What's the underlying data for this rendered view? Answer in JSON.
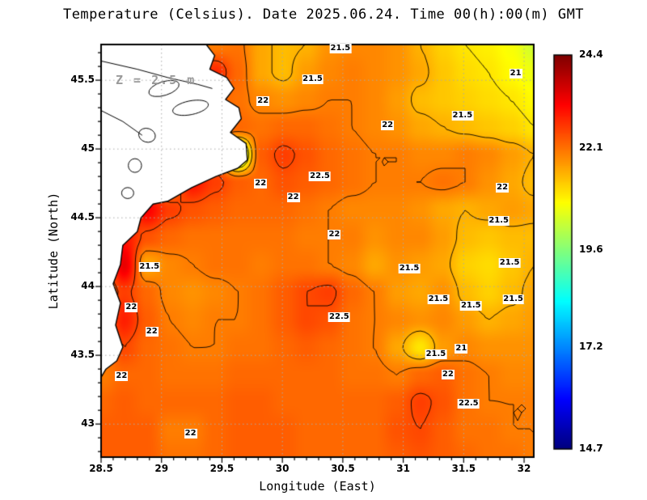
{
  "chart_data": {
    "type": "heatmap",
    "title": "Temperature (Celsius). Date 2025.06.24. Time 00(h):00(m) GMT",
    "annotation": "Z = 2.5 m",
    "xlabel": "Longitude (East)",
    "ylabel": "Latitude (North)",
    "xlim": [
      28.5,
      32.08
    ],
    "ylim": [
      42.76,
      45.76
    ],
    "x_ticks": [
      28.5,
      29,
      29.5,
      30,
      30.5,
      31,
      31.5,
      32
    ],
    "x_tick_labels": [
      "28.5",
      "29",
      "29.5",
      "30",
      "30.5",
      "31",
      "31.5",
      "32"
    ],
    "y_ticks": [
      43,
      43.5,
      44,
      44.5,
      45,
      45.5
    ],
    "y_tick_labels": [
      "43",
      "43.5",
      "44",
      "44.5",
      "45",
      "45.5"
    ],
    "colormap": "jet",
    "colorbar": {
      "position": "right",
      "min": 14.7,
      "max": 24.4,
      "tick_values": [
        24.4,
        22.1,
        19.6,
        17.2,
        14.7
      ],
      "tick_labels": [
        "24.4",
        "22.1",
        "19.6",
        "17.2",
        "14.7"
      ]
    },
    "grid": {
      "units": "degC",
      "lon_range": [
        28.5,
        32.08
      ],
      "lat_range_north_to_south": [
        45.76,
        42.76
      ],
      "nx": 20,
      "ny": 16,
      "values": [
        [
          22,
          22,
          22,
          22,
          22,
          22,
          22.1,
          21.6,
          21.4,
          21.5,
          21.8,
          21.9,
          21.9,
          21.8,
          21.5,
          21.2,
          21,
          20.9,
          20.7,
          20.3
        ],
        [
          22,
          22,
          22,
          22,
          22,
          22.8,
          22.2,
          21.6,
          21.4,
          21.7,
          21.9,
          22,
          21.9,
          21.8,
          21.6,
          21.3,
          21.1,
          21,
          20.8,
          20.6
        ],
        [
          22,
          22,
          22,
          22,
          22,
          22.3,
          22.1,
          21.9,
          21.8,
          21.9,
          22,
          22,
          21.9,
          21.7,
          21.4,
          21.3,
          21.2,
          21.1,
          21,
          20.8
        ],
        [
          22,
          22,
          22,
          22,
          22,
          22.2,
          22.2,
          22.1,
          22.2,
          22.2,
          22.1,
          22,
          21.9,
          21.8,
          21.6,
          21.5,
          21.4,
          21.3,
          21.2,
          21
        ],
        [
          22,
          22,
          22,
          22,
          22,
          22.2,
          19.8,
          22.3,
          22.6,
          22.4,
          22.2,
          22.1,
          22,
          22,
          21.9,
          21.9,
          22,
          21.9,
          21.7,
          21.5
        ],
        [
          22,
          22,
          22,
          22,
          23,
          22.6,
          22.3,
          22.2,
          22.4,
          22.3,
          22.2,
          22.1,
          22,
          22,
          22,
          22.1,
          22,
          21.8,
          21.6,
          21.4
        ],
        [
          22,
          22,
          23.2,
          22.6,
          22.4,
          22.3,
          22.2,
          22.2,
          22.2,
          22.1,
          22,
          21.9,
          21.9,
          21.9,
          21.8,
          21.6,
          21.5,
          21.6,
          21.7,
          21.6
        ],
        [
          22,
          23,
          22.4,
          22.2,
          22.1,
          22.1,
          22.1,
          22.1,
          22.1,
          22,
          22,
          22,
          21.8,
          21.9,
          21.9,
          21.7,
          21.4,
          21.3,
          21.4,
          21.4
        ],
        [
          22,
          23.4,
          21.6,
          21.9,
          22,
          22.1,
          22.1,
          22,
          22.1,
          22.1,
          22,
          21.9,
          21.6,
          21.8,
          21.7,
          21.6,
          21.2,
          21.1,
          21.3,
          21.5
        ],
        [
          22,
          22.6,
          22.2,
          21.9,
          21.8,
          21.9,
          22,
          22.1,
          22.3,
          22.5,
          22.6,
          22.2,
          22,
          21.7,
          21.6,
          21.8,
          21.4,
          21.2,
          21.4,
          21.6
        ],
        [
          22,
          22.9,
          22.3,
          22,
          21.9,
          22,
          22,
          22.1,
          22.3,
          22.5,
          22.4,
          22.1,
          22,
          21.9,
          21.8,
          21.9,
          21.7,
          21.5,
          21.6,
          21.7
        ],
        [
          22,
          22.5,
          22.2,
          22.1,
          22,
          22,
          22.1,
          22.1,
          22.2,
          22.3,
          22.2,
          22.1,
          22,
          21.6,
          21,
          21.7,
          21.9,
          21.8,
          21.8,
          21.8
        ],
        [
          22,
          22.2,
          22.2,
          22.1,
          22.1,
          22.1,
          22.2,
          22.2,
          22.2,
          22.2,
          22.2,
          22.1,
          22.1,
          22,
          22.2,
          22.3,
          22.1,
          22,
          21.9,
          21.9
        ],
        [
          22.2,
          22.3,
          22.2,
          22.2,
          22.2,
          22.2,
          22.3,
          22.3,
          22.2,
          22.2,
          22.2,
          22.2,
          22.2,
          22.3,
          22.6,
          22.4,
          22.1,
          22,
          22,
          22
        ],
        [
          22.3,
          22.3,
          22.3,
          22,
          22,
          22.2,
          22.3,
          22.3,
          22.3,
          22.2,
          22.2,
          22.2,
          22.2,
          22.4,
          22.5,
          22.3,
          22.1,
          22.1,
          22,
          22
        ],
        [
          22.3,
          22.3,
          22.3,
          22.1,
          22.1,
          22.2,
          22.3,
          22.3,
          22.3,
          22.2,
          22.2,
          22.2,
          22.2,
          22.3,
          22.4,
          22.3,
          22.2,
          22.1,
          22.1,
          22
        ]
      ]
    },
    "contour_levels": [
      21,
      21.5,
      22,
      22.5
    ],
    "contour_labels": [
      {
        "lon": 30.48,
        "lat": 45.73,
        "text": "21.5"
      },
      {
        "lon": 30.25,
        "lat": 45.51,
        "text": "21.5"
      },
      {
        "lon": 29.84,
        "lat": 45.35,
        "text": "22"
      },
      {
        "lon": 30.87,
        "lat": 45.17,
        "text": "22"
      },
      {
        "lon": 31.49,
        "lat": 45.24,
        "text": "21.5"
      },
      {
        "lon": 31.93,
        "lat": 45.55,
        "text": "21"
      },
      {
        "lon": 30.31,
        "lat": 44.8,
        "text": "22.5"
      },
      {
        "lon": 29.82,
        "lat": 44.75,
        "text": "22"
      },
      {
        "lon": 30.09,
        "lat": 44.65,
        "text": "22"
      },
      {
        "lon": 31.82,
        "lat": 44.72,
        "text": "22"
      },
      {
        "lon": 30.43,
        "lat": 44.38,
        "text": "22"
      },
      {
        "lon": 31.79,
        "lat": 44.48,
        "text": "21.5"
      },
      {
        "lon": 28.9,
        "lat": 44.14,
        "text": "21.5"
      },
      {
        "lon": 31.05,
        "lat": 44.13,
        "text": "21.5"
      },
      {
        "lon": 31.88,
        "lat": 44.17,
        "text": "21.5"
      },
      {
        "lon": 31.29,
        "lat": 43.91,
        "text": "21.5"
      },
      {
        "lon": 31.56,
        "lat": 43.86,
        "text": "21.5"
      },
      {
        "lon": 31.91,
        "lat": 43.91,
        "text": "21.5"
      },
      {
        "lon": 28.75,
        "lat": 43.85,
        "text": "22"
      },
      {
        "lon": 28.92,
        "lat": 43.67,
        "text": "22"
      },
      {
        "lon": 30.47,
        "lat": 43.78,
        "text": "22.5"
      },
      {
        "lon": 31.48,
        "lat": 43.55,
        "text": "21"
      },
      {
        "lon": 31.27,
        "lat": 43.51,
        "text": "21.5"
      },
      {
        "lon": 31.37,
        "lat": 43.36,
        "text": "22"
      },
      {
        "lon": 28.67,
        "lat": 43.35,
        "text": "22"
      },
      {
        "lon": 31.54,
        "lat": 43.15,
        "text": "22.5"
      },
      {
        "lon": 29.24,
        "lat": 42.93,
        "text": "22"
      }
    ]
  },
  "geography": {
    "coastline": [
      [
        28.5,
        45.76
      ],
      [
        29.37,
        45.76
      ],
      [
        29.44,
        45.68
      ],
      [
        29.4,
        45.58
      ],
      [
        29.54,
        45.52
      ],
      [
        29.6,
        45.44
      ],
      [
        29.53,
        45.36
      ],
      [
        29.64,
        45.3
      ],
      [
        29.66,
        45.22
      ],
      [
        29.57,
        45.12
      ],
      [
        29.7,
        45.04
      ],
      [
        29.71,
        44.92
      ],
      [
        29.63,
        44.86
      ],
      [
        29.45,
        44.8
      ],
      [
        29.25,
        44.72
      ],
      [
        29.05,
        44.62
      ],
      [
        28.93,
        44.6
      ],
      [
        28.83,
        44.5
      ],
      [
        28.8,
        44.4
      ],
      [
        28.68,
        44.3
      ],
      [
        28.66,
        44.16
      ],
      [
        28.6,
        44.02
      ],
      [
        28.66,
        43.88
      ],
      [
        28.62,
        43.72
      ],
      [
        28.68,
        43.56
      ],
      [
        28.63,
        43.46
      ],
      [
        28.54,
        43.4
      ],
      [
        28.5,
        43.34
      ]
    ],
    "lakes": [
      [
        29.02,
        45.44,
        0.13,
        0.05,
        -0.3
      ],
      [
        29.24,
        45.3,
        0.15,
        0.05,
        -0.2
      ],
      [
        28.88,
        45.1,
        0.07,
        0.05,
        0.3
      ],
      [
        28.78,
        44.88,
        0.055,
        0.05,
        0
      ],
      [
        28.72,
        44.68,
        0.05,
        0.04,
        0
      ]
    ],
    "rivers": [
      [
        [
          28.5,
          45.64
        ],
        [
          28.8,
          45.58
        ],
        [
          29.05,
          45.52
        ],
        [
          29.3,
          45.47
        ],
        [
          29.42,
          45.44
        ]
      ],
      [
        [
          28.5,
          45.28
        ],
        [
          28.68,
          45.2
        ],
        [
          28.84,
          45.1
        ]
      ]
    ]
  }
}
